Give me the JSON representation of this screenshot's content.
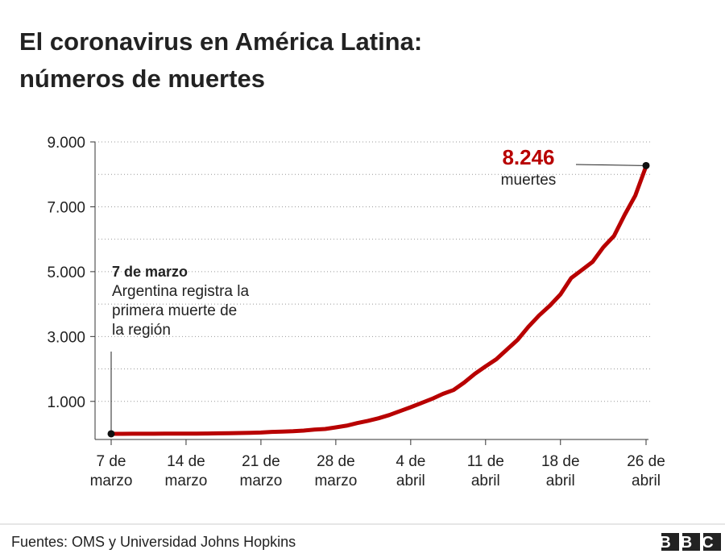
{
  "chart_data": {
    "type": "line",
    "title": [
      "El coronavirus en América Latina:",
      "números de muertes"
    ],
    "categories": [
      "7 de marzo",
      null,
      null,
      null,
      null,
      null,
      null,
      "14 de marzo",
      null,
      null,
      null,
      null,
      null,
      null,
      "21 de marzo",
      null,
      null,
      null,
      null,
      null,
      null,
      "28 de marzo",
      null,
      null,
      null,
      null,
      null,
      null,
      "4 de abril",
      null,
      null,
      null,
      null,
      null,
      null,
      "11 de abril",
      null,
      null,
      null,
      null,
      null,
      null,
      "18 de abril",
      null,
      null,
      null,
      null,
      null,
      null,
      null,
      "26 de abril"
    ],
    "series": [
      {
        "color": "#b80000",
        "values": [
          1,
          1,
          2,
          2,
          3,
          4,
          5,
          6,
          8,
          10,
          14,
          20,
          24,
          30,
          40,
          60,
          70,
          80,
          100,
          130,
          150,
          200,
          250,
          330,
          400,
          480,
          580,
          700,
          820,
          950,
          1080,
          1230,
          1350,
          1580,
          1850,
          2080,
          2300,
          2600,
          2900,
          3300,
          3650,
          3950,
          4300,
          4800,
          5050,
          5300,
          5750,
          6100,
          6750,
          7350,
          8246
        ]
      }
    ],
    "ylim": [
      0,
      9000
    ],
    "yticks": [
      {
        "value": 1000,
        "label": "1.000"
      },
      {
        "value": 3000,
        "label": "3.000"
      },
      {
        "value": 5000,
        "label": "5.000"
      },
      {
        "value": 7000,
        "label": "7.000"
      },
      {
        "value": 9000,
        "label": "9.000"
      }
    ],
    "minor_yticks": [
      2000,
      4000,
      6000,
      8000
    ],
    "grid": true,
    "start_annotation": {
      "title": "7 de marzo",
      "lines": [
        "Argentina registra la",
        "primera muerte de",
        "la región"
      ]
    },
    "end_annotation": {
      "label": "8.246",
      "text": "muertes"
    },
    "source": "Fuentes: OMS y Universidad Johns Hopkins",
    "logo": "BBC"
  }
}
